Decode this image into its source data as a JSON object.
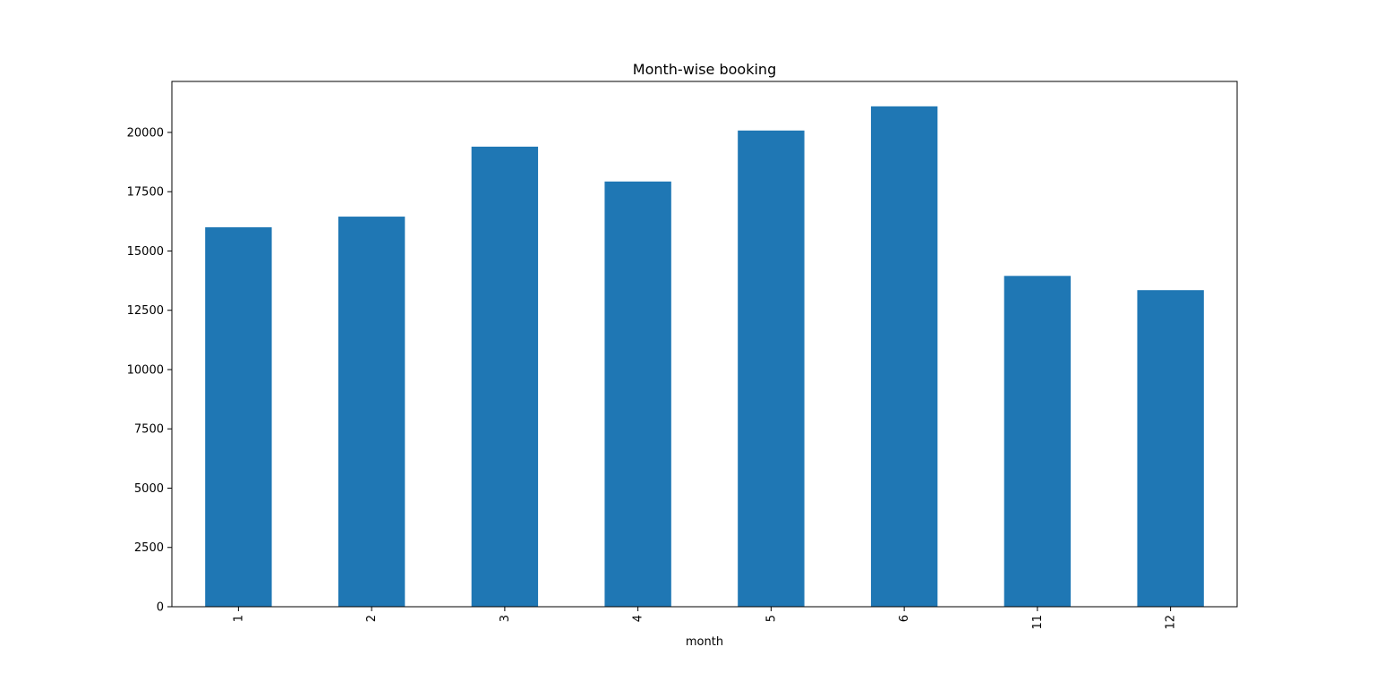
{
  "chart_data": {
    "type": "bar",
    "title": "Month-wise booking",
    "xlabel": "month",
    "ylabel": "",
    "categories": [
      "1",
      "2",
      "3",
      "4",
      "5",
      "6",
      "11",
      "12"
    ],
    "values": [
      16000,
      16450,
      19400,
      17930,
      20080,
      21100,
      13950,
      13350
    ],
    "ylim": [
      0,
      22150
    ],
    "yticks": [
      0,
      2500,
      5000,
      7500,
      10000,
      12500,
      15000,
      17500,
      20000
    ],
    "ytick_labels": [
      "0",
      "2500",
      "5000",
      "7500",
      "10000",
      "12500",
      "15000",
      "17500",
      "20000"
    ],
    "grid": false,
    "legend": "none",
    "bar_color": "#1f77b4",
    "xtick_rotation": "vertical"
  }
}
